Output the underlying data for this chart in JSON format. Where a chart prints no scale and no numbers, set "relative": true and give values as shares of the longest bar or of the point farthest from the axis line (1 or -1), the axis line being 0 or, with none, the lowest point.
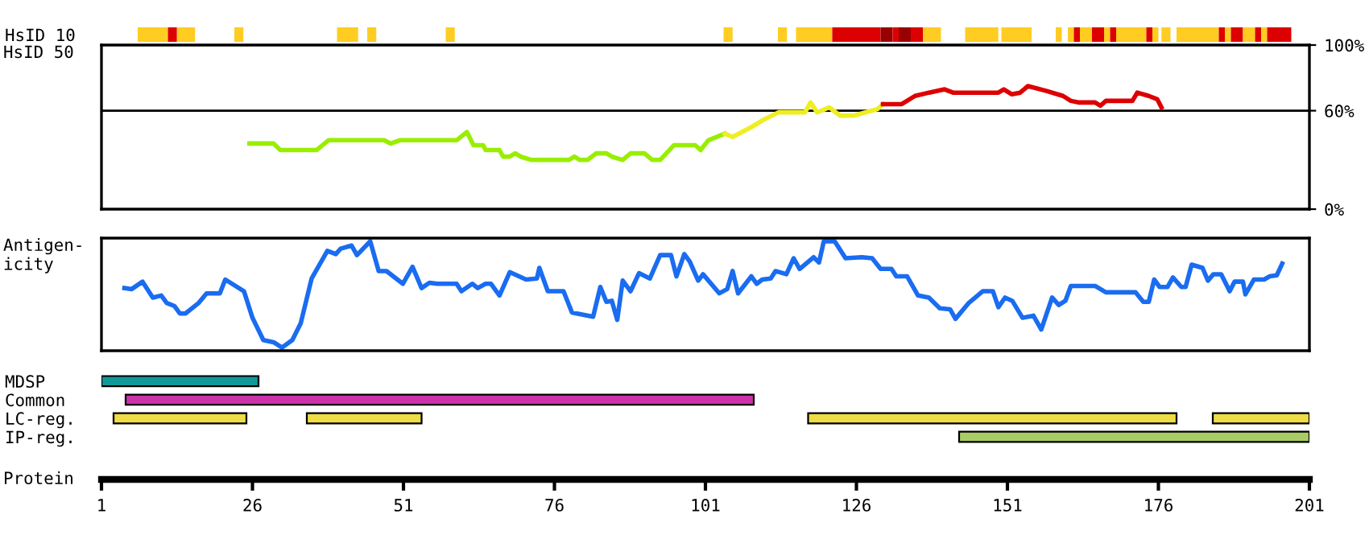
{
  "chart_data": [
    {
      "type": "bar",
      "orientation": "horizontal",
      "categories": [
        "HsID 10"
      ],
      "xlim": [
        1,
        201
      ],
      "tick_labels": "y",
      "series": [
        {
          "color": "#ffcc22",
          "base": [
            7
          ],
          "values": [
            5
          ]
        },
        {
          "color": "#dd0000",
          "base": [
            12
          ],
          "values": [
            1.5
          ]
        },
        {
          "color": "#ffcc22",
          "base": [
            13.5
          ],
          "values": [
            3
          ]
        },
        {
          "color": "#ffcc22",
          "base": [
            23
          ],
          "values": [
            1.5
          ]
        },
        {
          "color": "#ffcc22",
          "base": [
            40
          ],
          "values": [
            3.5
          ]
        },
        {
          "color": "#ffcc22",
          "base": [
            45
          ],
          "values": [
            1.5
          ]
        },
        {
          "color": "#ffcc22",
          "base": [
            58
          ],
          "values": [
            1.5
          ]
        },
        {
          "color": "#ffcc22",
          "base": [
            104
          ],
          "values": [
            1.5
          ]
        },
        {
          "color": "#ffcc22",
          "base": [
            113
          ],
          "values": [
            1.5
          ]
        },
        {
          "color": "#ffcc22",
          "base": [
            116
          ],
          "values": [
            6
          ]
        },
        {
          "color": "#dd0000",
          "base": [
            122
          ],
          "values": [
            8
          ]
        },
        {
          "color": "#990000",
          "base": [
            130
          ],
          "values": [
            2
          ]
        },
        {
          "color": "#dd0000",
          "base": [
            132
          ],
          "values": [
            1
          ]
        },
        {
          "color": "#990000",
          "base": [
            133
          ],
          "values": [
            2
          ]
        },
        {
          "color": "#dd0000",
          "base": [
            135
          ],
          "values": [
            2
          ]
        },
        {
          "color": "#ffcc22",
          "base": [
            137
          ],
          "values": [
            3
          ]
        },
        {
          "color": "#ffcc22",
          "base": [
            144
          ],
          "values": [
            5.5
          ]
        },
        {
          "color": "#ffcc22",
          "base": [
            150
          ],
          "values": [
            5
          ]
        },
        {
          "color": "#ffcc22",
          "base": [
            159
          ],
          "values": [
            1
          ]
        },
        {
          "color": "#ffcc22",
          "base": [
            161
          ],
          "values": [
            1
          ]
        },
        {
          "color": "#dd0000",
          "base": [
            162
          ],
          "values": [
            1
          ]
        },
        {
          "color": "#ffcc22",
          "base": [
            163
          ],
          "values": [
            2
          ]
        },
        {
          "color": "#dd0000",
          "base": [
            165
          ],
          "values": [
            2
          ]
        },
        {
          "color": "#ffcc22",
          "base": [
            167
          ],
          "values": [
            1
          ]
        },
        {
          "color": "#dd0000",
          "base": [
            168
          ],
          "values": [
            1
          ]
        },
        {
          "color": "#ffcc22",
          "base": [
            169
          ],
          "values": [
            5
          ]
        },
        {
          "color": "#dd0000",
          "base": [
            174
          ],
          "values": [
            1
          ]
        },
        {
          "color": "#ffcc22",
          "base": [
            175
          ],
          "values": [
            1
          ]
        },
        {
          "color": "#ffcc22",
          "base": [
            176.5
          ],
          "values": [
            1.5
          ]
        },
        {
          "color": "#ffcc22",
          "base": [
            179
          ],
          "values": [
            7
          ]
        },
        {
          "color": "#dd0000",
          "base": [
            186
          ],
          "values": [
            1
          ]
        },
        {
          "color": "#ffcc22",
          "base": [
            187
          ],
          "values": [
            1
          ]
        },
        {
          "color": "#dd0000",
          "base": [
            188
          ],
          "values": [
            2
          ]
        },
        {
          "color": "#ffcc22",
          "base": [
            190
          ],
          "values": [
            2
          ]
        },
        {
          "color": "#dd0000",
          "base": [
            192
          ],
          "values": [
            1
          ]
        },
        {
          "color": "#ffcc22",
          "base": [
            193
          ],
          "values": [
            1
          ]
        },
        {
          "color": "#dd0000",
          "base": [
            194
          ],
          "values": [
            4
          ]
        }
      ]
    },
    {
      "type": "line",
      "ylabel": "HsID 50",
      "xlim": [
        1,
        201
      ],
      "ylim": [
        0,
        100
      ],
      "tick_labels": "y",
      "yticks": [
        {
          "value": 0,
          "label": "0%"
        },
        {
          "value": 60,
          "label": "60%"
        },
        {
          "value": 100,
          "label": "100%"
        }
      ],
      "ref_lines": [
        {
          "axis": "y",
          "value": 60,
          "color": "#000000"
        }
      ],
      "series": [
        {
          "color": "#99ee00",
          "x": [
            25.5,
            29.5,
            30.6,
            36.6,
            38.6,
            47.8,
            48.9,
            50.4,
            59.8,
            61.5,
            62.6,
            64.2,
            64.6,
            66.9,
            67.5,
            68.6,
            69.5,
            70.4,
            72.2,
            78.4,
            79.3,
            80.2,
            81.5,
            82.9,
            84.6,
            85.5,
            87.3,
            88.6,
            90.9,
            92.2,
            93.5,
            95.8,
            99.3,
            100.2,
            101.5,
            104.2
          ],
          "values": [
            40,
            40,
            36,
            36,
            42,
            42,
            40,
            42,
            42,
            47,
            39,
            39,
            36,
            36,
            32,
            32,
            34,
            32,
            30,
            30,
            32,
            30,
            30,
            34,
            34,
            32,
            30,
            34,
            34,
            30,
            30,
            39,
            39,
            36,
            42,
            46
          ]
        },
        {
          "color": "#eeee22",
          "x": [
            104.2,
            105.5,
            108.6,
            110.4,
            113.1,
            117.5,
            118.4,
            119.5,
            121.5,
            123.3,
            125.5,
            129.5,
            130.4
          ],
          "values": [
            46,
            44,
            50,
            54,
            59,
            59,
            65,
            59,
            62,
            57,
            57,
            61,
            64
          ]
        },
        {
          "color": "#dd0000",
          "x": [
            130.4,
            133.5,
            135.7,
            138,
            140.6,
            142,
            149.5,
            150.4,
            151.7,
            153.1,
            154.4,
            157.5,
            160.2,
            161.5,
            162.9,
            165.5,
            166.4,
            167.3,
            171.7,
            172.5,
            174.4,
            175.8,
            176.5
          ],
          "values": [
            64,
            64,
            69,
            71,
            73,
            71,
            71,
            73,
            70,
            71,
            75,
            72,
            69,
            66,
            65,
            65,
            63,
            66,
            66,
            71,
            69,
            67,
            62
          ]
        }
      ]
    },
    {
      "type": "line",
      "ylabel": "Antigen-\nicity",
      "relative": true,
      "xlim": [
        1,
        201
      ],
      "tick_labels": false,
      "series": [
        {
          "color": "#1a6cf0",
          "x": [
            4.8,
            6.0,
            7.8,
            9.5,
            10.9,
            11.8,
            13.1,
            14.0,
            14.9,
            17.1,
            18.4,
            20.6,
            21.5,
            24.6,
            26.0,
            27.8,
            29.5,
            30.9,
            32.6,
            34.0,
            35.8,
            38.4,
            39.8,
            40.6,
            42.4,
            43.3,
            45.5,
            46.9,
            48.2,
            50.9,
            52.5,
            54.0,
            55.3,
            56.6,
            59.8,
            60.6,
            62.4,
            63.3,
            64.6,
            65.5,
            66.9,
            68.6,
            71.3,
            73.1,
            73.5,
            74.9,
            77.5,
            78.9,
            82.4,
            83.6,
            84.6,
            85.5,
            86.4,
            87.3,
            88.6,
            90.0,
            91.8,
            93.5,
            95.3,
            96.2,
            97.5,
            98.4,
            99.8,
            100.6,
            103.3,
            104.6,
            105.5,
            106.4,
            108.6,
            109.5,
            110.4,
            111.8,
            112.6,
            114.4,
            115.6,
            116.6,
            118.9,
            119.8,
            120.6,
            122.4,
            124.2,
            126.9,
            128.6,
            130,
            131.8,
            132.6,
            134.4,
            136.2,
            138,
            139.8,
            141.5,
            142.4,
            144.6,
            146.9,
            148.6,
            149.5,
            150.6,
            151.8,
            153.5,
            155.3,
            156.6,
            158.4,
            159.5,
            160.6,
            161.5,
            165.5,
            167.3,
            172.2,
            173.5,
            174.4,
            175.3,
            176.2,
            177.5,
            178.4,
            179.8,
            180.5,
            181.5,
            183.3,
            184.2,
            185.1,
            186.4,
            187.8,
            188.6,
            190,
            190.4,
            191.8,
            193.5,
            194.4,
            195.6,
            196.5
          ],
          "values": [
            0.56,
            0.55,
            0.62,
            0.47,
            0.49,
            0.42,
            0.39,
            0.32,
            0.32,
            0.42,
            0.51,
            0.51,
            0.64,
            0.53,
            0.28,
            0.07,
            0.05,
            0,
            0.07,
            0.23,
            0.65,
            0.91,
            0.88,
            0.93,
            0.96,
            0.87,
            1,
            0.72,
            0.72,
            0.6,
            0.76,
            0.56,
            0.61,
            0.6,
            0.6,
            0.53,
            0.6,
            0.56,
            0.6,
            0.6,
            0.49,
            0.71,
            0.64,
            0.65,
            0.75,
            0.53,
            0.53,
            0.33,
            0.29,
            0.57,
            0.43,
            0.44,
            0.26,
            0.63,
            0.53,
            0.7,
            0.65,
            0.87,
            0.87,
            0.67,
            0.88,
            0.81,
            0.63,
            0.69,
            0.51,
            0.55,
            0.72,
            0.51,
            0.67,
            0.6,
            0.64,
            0.65,
            0.72,
            0.69,
            0.84,
            0.74,
            0.85,
            0.8,
            1,
            1,
            0.84,
            0.85,
            0.84,
            0.74,
            0.74,
            0.67,
            0.67,
            0.49,
            0.47,
            0.37,
            0.36,
            0.27,
            0.42,
            0.53,
            0.53,
            0.38,
            0.47,
            0.44,
            0.28,
            0.3,
            0.17,
            0.47,
            0.4,
            0.44,
            0.58,
            0.58,
            0.52,
            0.52,
            0.43,
            0.43,
            0.64,
            0.57,
            0.57,
            0.66,
            0.57,
            0.57,
            0.78,
            0.75,
            0.63,
            0.69,
            0.69,
            0.53,
            0.62,
            0.62,
            0.5,
            0.64,
            0.64,
            0.67,
            0.68,
            0.79
          ]
        }
      ]
    },
    {
      "type": "bar",
      "orientation": "horizontal",
      "categories": [
        "MDSP",
        "Common",
        "LC-reg.",
        "IP-reg."
      ],
      "xlabel": "Protein",
      "xlim": [
        1,
        201
      ],
      "xticks": [
        1,
        26,
        51,
        76,
        101,
        126,
        151,
        176,
        201
      ],
      "series": [
        {
          "colors": [
            "#119999",
            "#cc33aa",
            "#eedd44",
            "#aacc66"
          ],
          "base": [
            1,
            5,
            3,
            143
          ],
          "values": [
            26,
            104,
            22,
            58
          ]
        },
        {
          "color": "#eedd44",
          "base": [
            null,
            null,
            35,
            null
          ],
          "values": [
            null,
            null,
            19,
            null
          ]
        },
        {
          "color": "#eedd44",
          "base": [
            null,
            null,
            118,
            null
          ],
          "values": [
            null,
            null,
            61,
            null
          ]
        },
        {
          "color": "#eedd44",
          "base": [
            null,
            null,
            185,
            null
          ],
          "values": [
            null,
            null,
            16,
            null
          ]
        }
      ]
    }
  ]
}
